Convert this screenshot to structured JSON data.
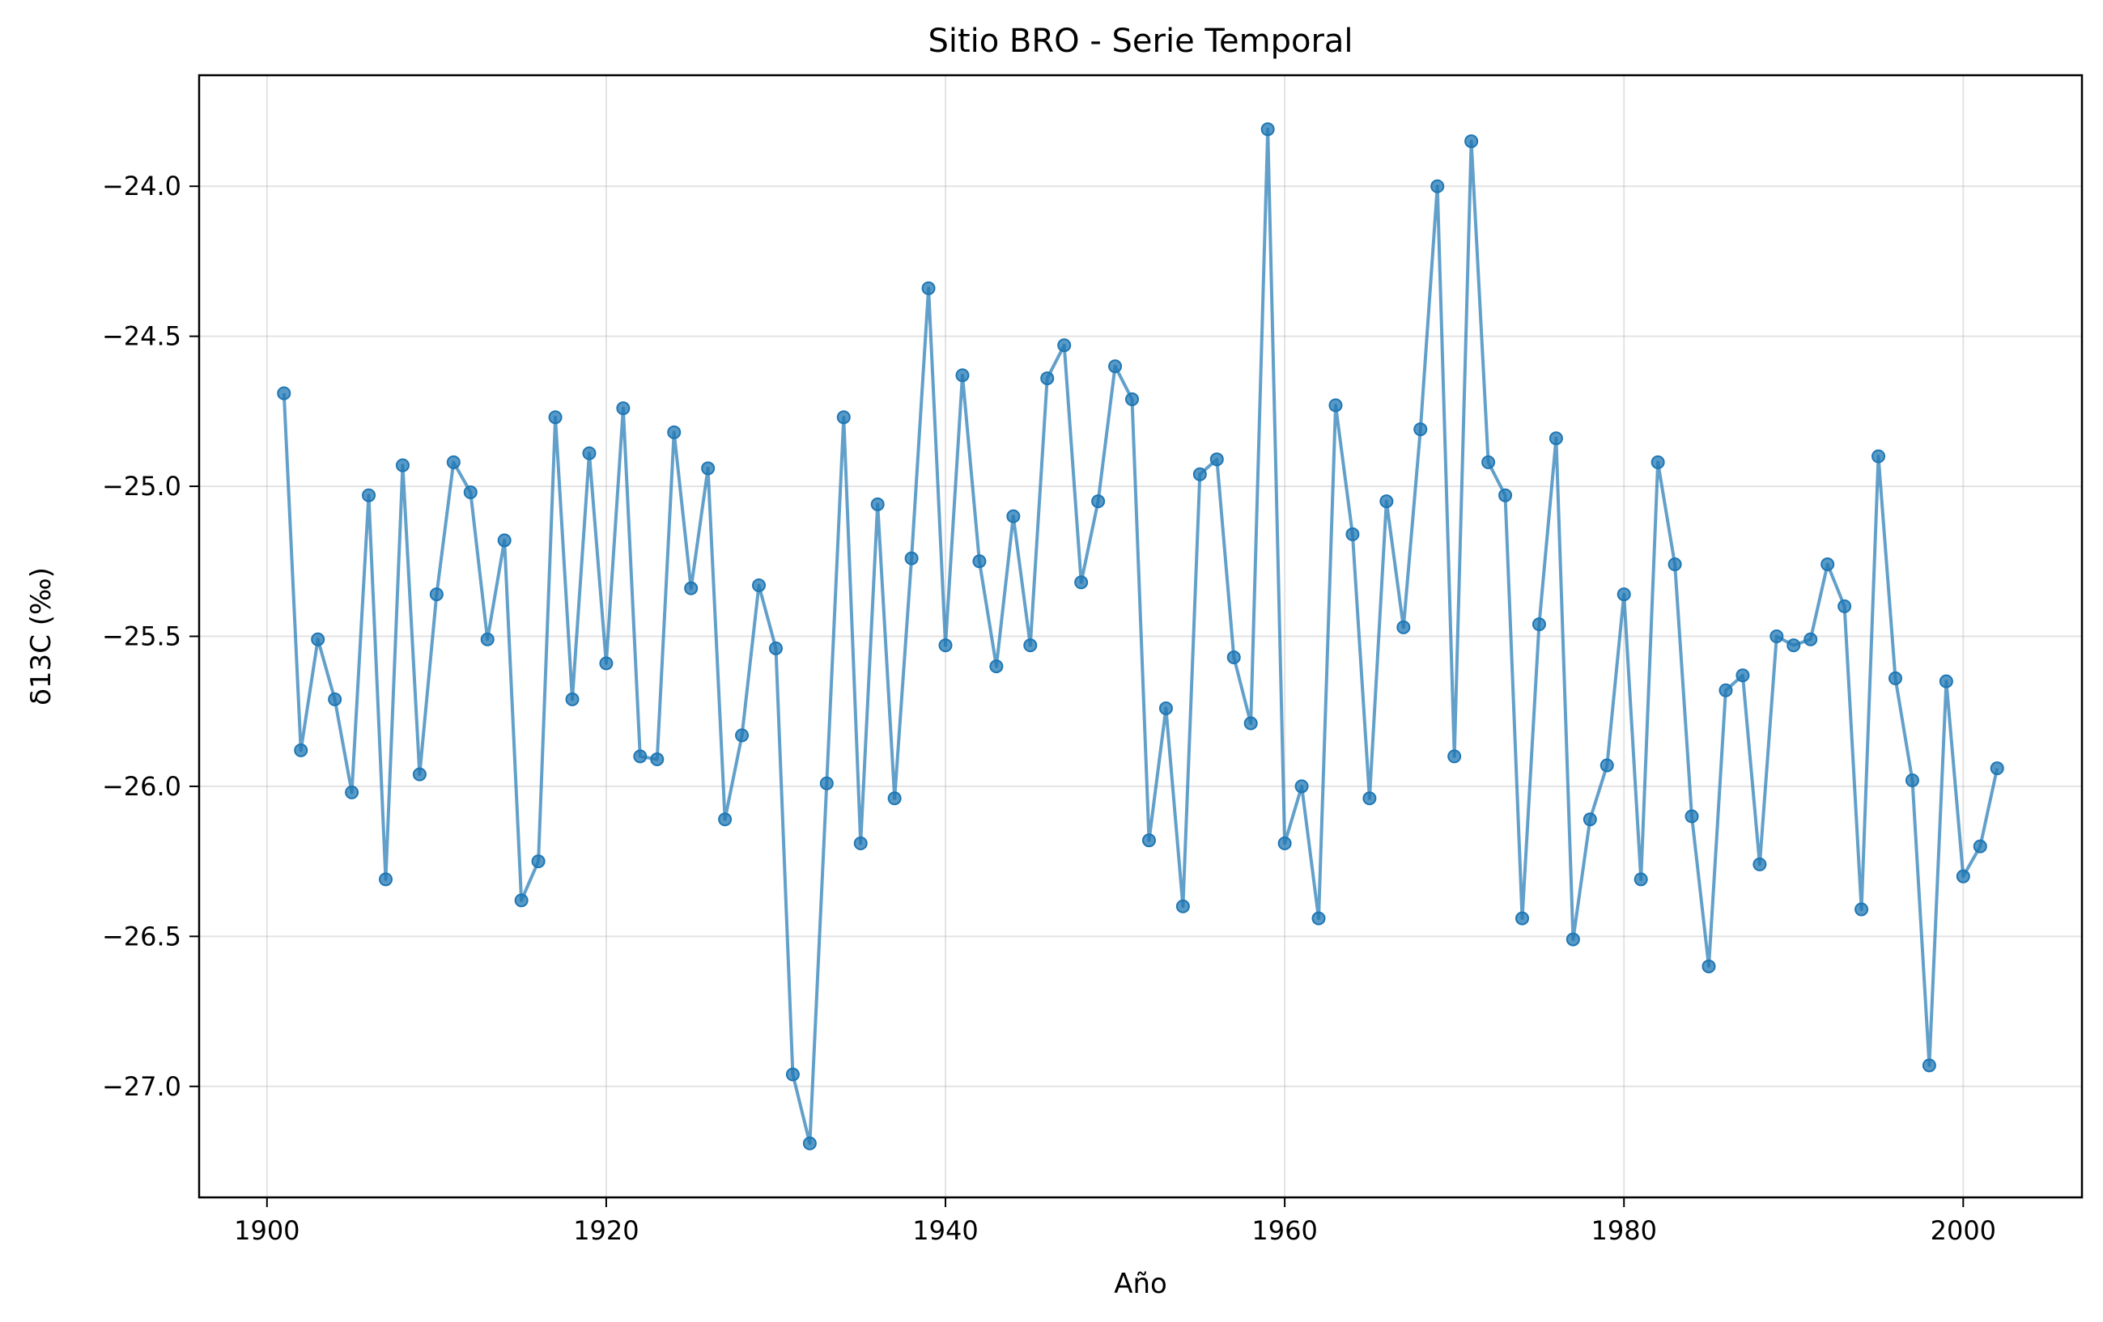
{
  "chart_data": {
    "type": "line",
    "title": "Sitio BRO - Serie Temporal",
    "xlabel": "Año",
    "ylabel": "δ13C (‰)",
    "xlim": [
      1896,
      2007
    ],
    "ylim": [
      -27.37,
      -23.63
    ],
    "grid": true,
    "x_ticks": [
      1900,
      1920,
      1940,
      1960,
      1980,
      2000
    ],
    "x_tick_labels": [
      "1900",
      "1920",
      "1940",
      "1960",
      "1980",
      "2000"
    ],
    "y_ticks": [
      -24.0,
      -24.5,
      -25.0,
      -25.5,
      -26.0,
      -26.5,
      -27.0
    ],
    "y_tick_labels": [
      "−24.0",
      "−24.5",
      "−25.0",
      "−25.5",
      "−26.0",
      "−26.5",
      "−27.0"
    ],
    "series": [
      {
        "color": "#1f77b4",
        "x": [
          1901,
          1902,
          1903,
          1904,
          1905,
          1906,
          1907,
          1908,
          1909,
          1910,
          1911,
          1912,
          1913,
          1914,
          1915,
          1916,
          1917,
          1918,
          1919,
          1920,
          1921,
          1922,
          1923,
          1924,
          1925,
          1926,
          1927,
          1928,
          1929,
          1930,
          1931,
          1932,
          1933,
          1934,
          1935,
          1936,
          1937,
          1938,
          1939,
          1940,
          1941,
          1942,
          1943,
          1944,
          1945,
          1946,
          1947,
          1948,
          1949,
          1950,
          1951,
          1952,
          1953,
          1954,
          1955,
          1956,
          1957,
          1958,
          1959,
          1960,
          1961,
          1962,
          1963,
          1964,
          1965,
          1966,
          1967,
          1968,
          1969,
          1970,
          1971,
          1972,
          1973,
          1974,
          1975,
          1976,
          1977,
          1978,
          1979,
          1980,
          1981,
          1982,
          1983,
          1984,
          1985,
          1986,
          1987,
          1988,
          1989,
          1990,
          1991,
          1992,
          1993,
          1994,
          1995,
          1996,
          1997,
          1998,
          1999,
          2000,
          2001,
          2002
        ],
        "y": [
          -24.69,
          -25.88,
          -25.51,
          -25.71,
          -26.02,
          -25.03,
          -26.31,
          -24.93,
          -25.96,
          -25.36,
          -24.92,
          -25.02,
          -25.51,
          -25.18,
          -26.38,
          -26.25,
          -24.77,
          -25.71,
          -24.89,
          -25.59,
          -24.74,
          -25.9,
          -25.91,
          -24.82,
          -25.34,
          -24.94,
          -26.11,
          -25.83,
          -25.33,
          -25.54,
          -26.96,
          -27.19,
          -25.99,
          -24.77,
          -26.19,
          -25.06,
          -26.04,
          -25.24,
          -24.34,
          -25.53,
          -24.63,
          -25.25,
          -25.6,
          -25.1,
          -25.53,
          -24.64,
          -24.53,
          -25.32,
          -25.05,
          -24.6,
          -24.71,
          -26.18,
          -25.74,
          -26.4,
          -24.96,
          -24.91,
          -25.57,
          -25.79,
          -23.81,
          -26.19,
          -26.0,
          -26.44,
          -24.73,
          -25.16,
          -26.04,
          -25.05,
          -25.47,
          -24.81,
          -24.0,
          -25.9,
          -23.85,
          -24.92,
          -25.03,
          -26.44,
          -25.46,
          -24.84,
          -26.51,
          -26.11,
          -25.93,
          -25.36,
          -26.31,
          -24.92,
          -25.26,
          -26.1,
          -26.6,
          -25.68,
          -25.63,
          -26.26,
          -25.5,
          -25.53,
          -25.51,
          -25.26,
          -25.4,
          -26.41,
          -24.9,
          -25.64,
          -25.98,
          -26.93,
          -25.65,
          -26.3,
          -26.2,
          -25.94
        ]
      }
    ]
  }
}
